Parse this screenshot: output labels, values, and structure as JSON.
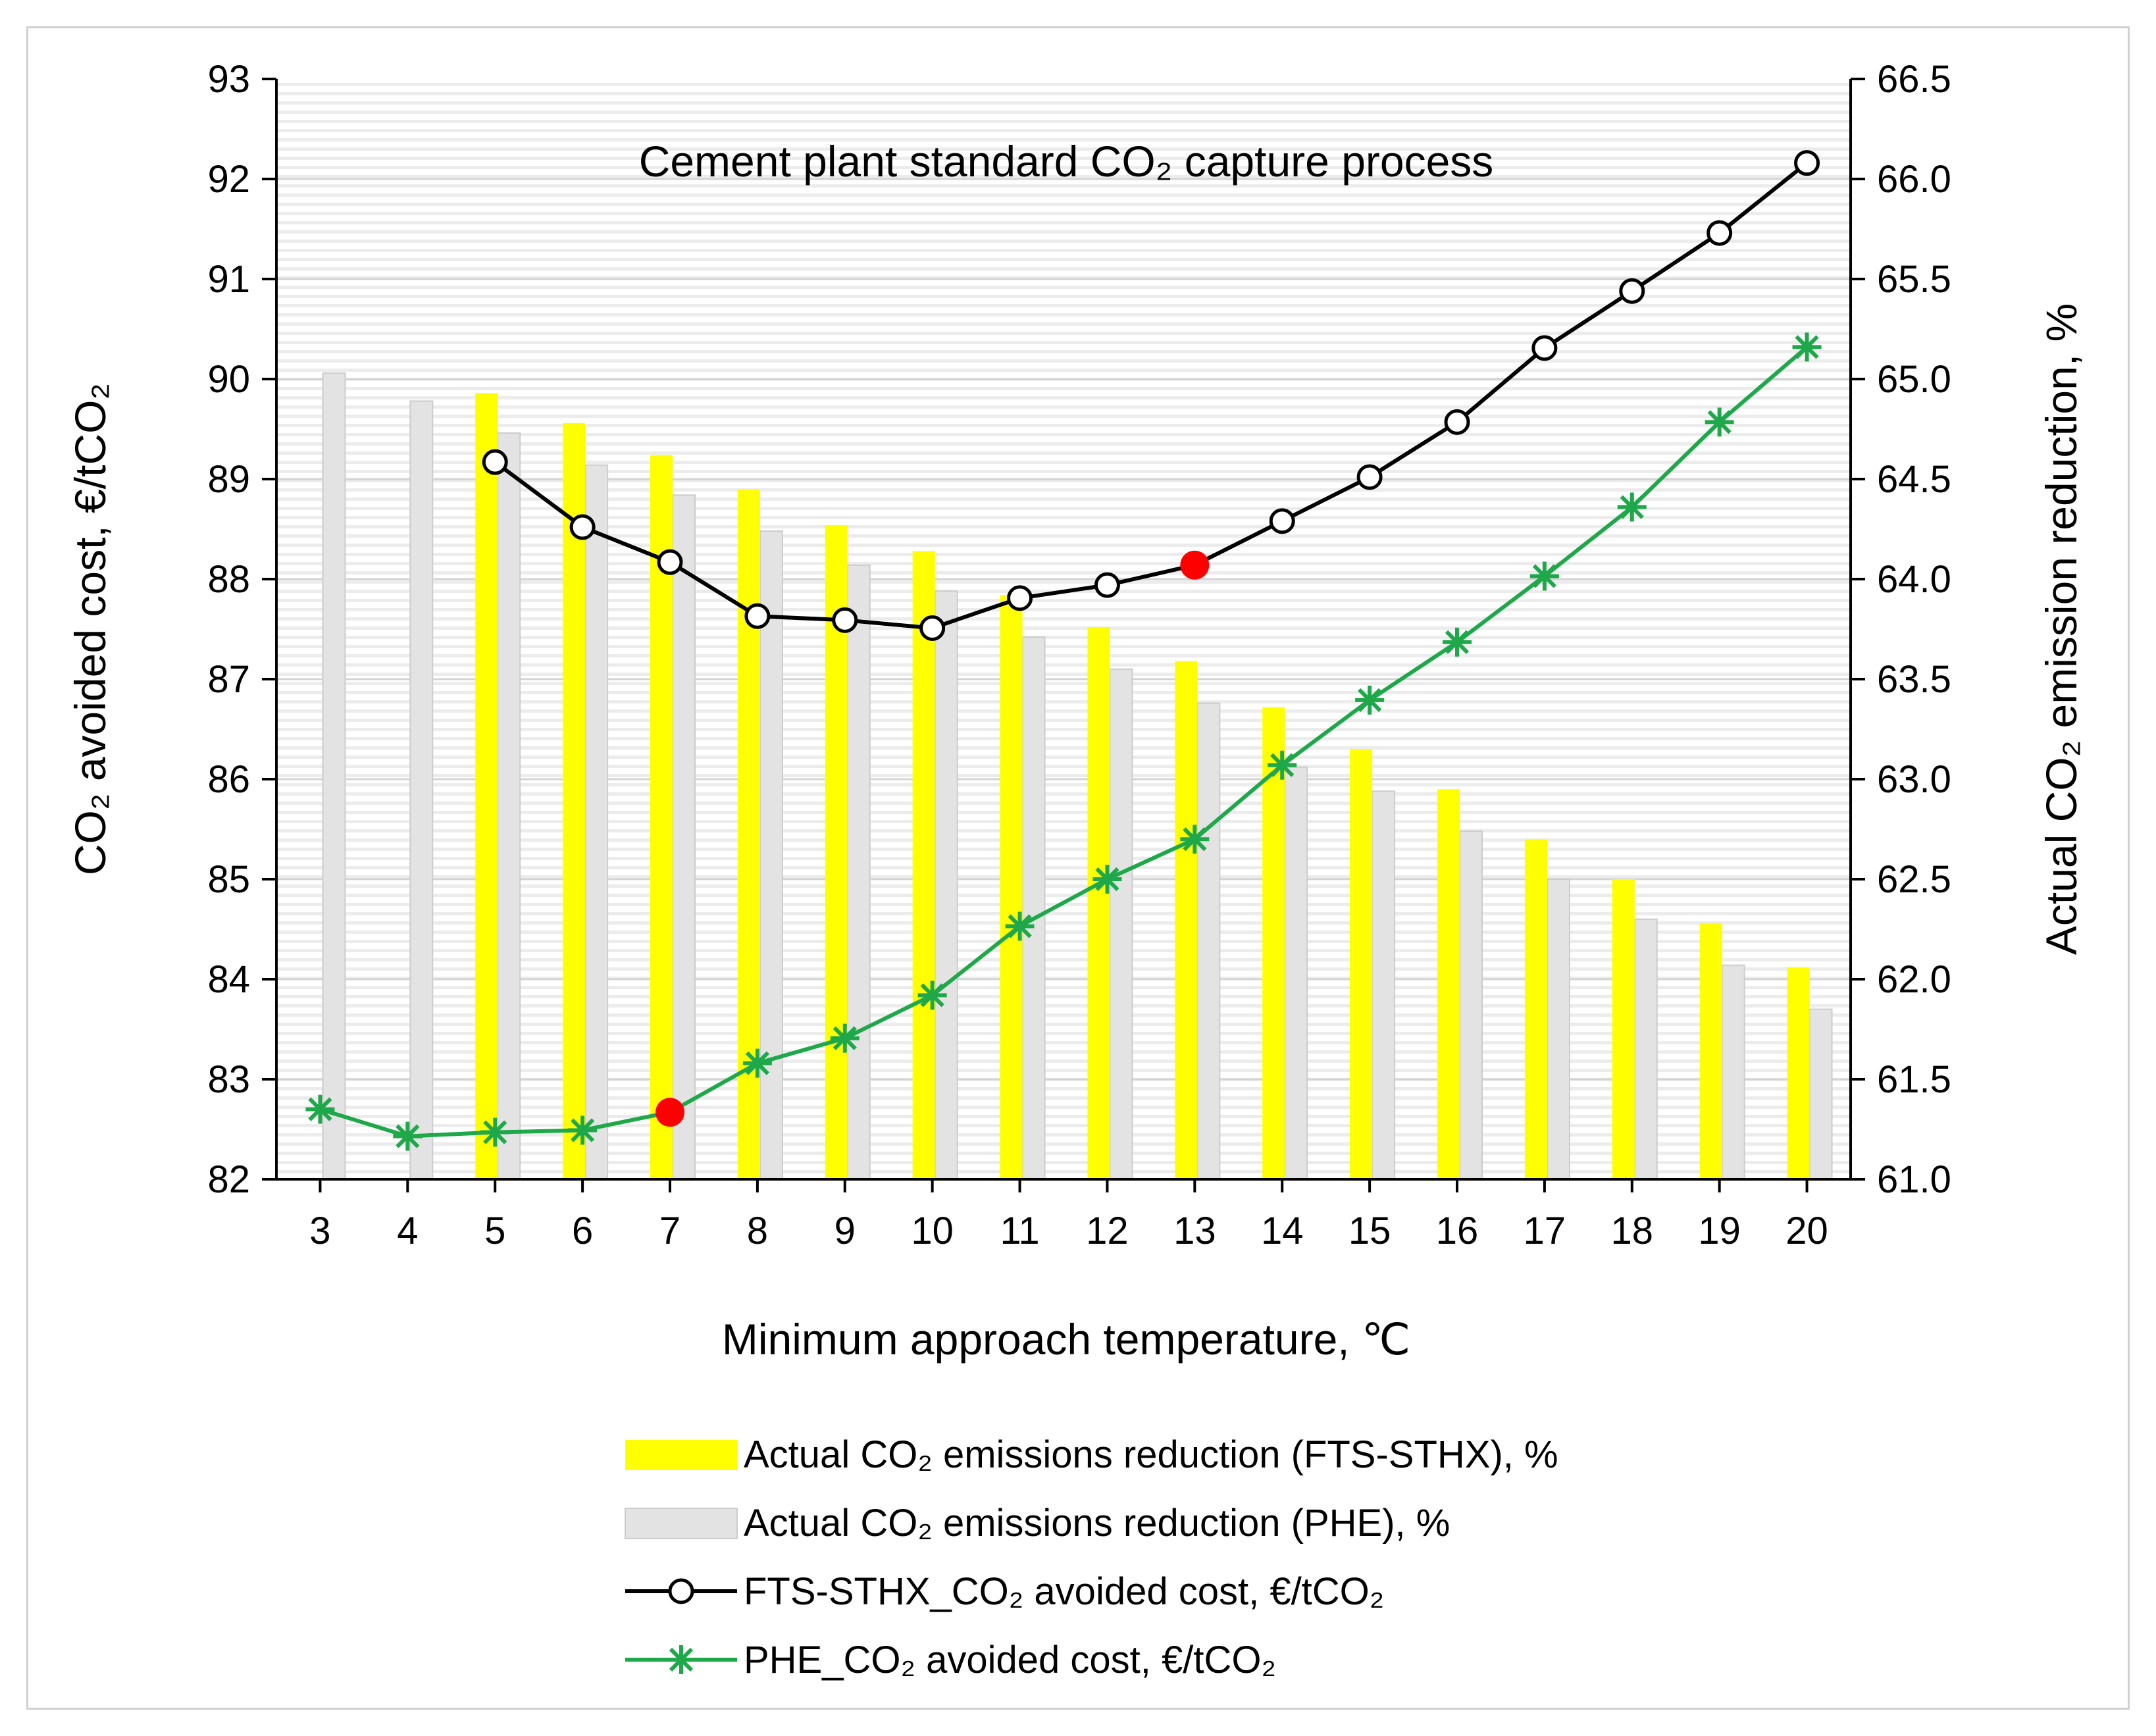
{
  "chart_data": {
    "type": "bar+line",
    "title": "Cement plant standard CO₂ capture process",
    "xlabel": "Minimum approach temperature, ℃",
    "ylabel_left": "CO₂ avoided cost, €/tCO₂",
    "ylabel_right": "Actual CO₂ emission reduction, %",
    "categories": [
      3,
      4,
      5,
      6,
      7,
      8,
      9,
      10,
      11,
      12,
      13,
      14,
      15,
      16,
      17,
      18,
      19,
      20
    ],
    "ylim_left": [
      82,
      93
    ],
    "ylim_right": [
      61.0,
      66.5
    ],
    "yticks_left": [
      "82",
      "83",
      "84",
      "85",
      "86",
      "87",
      "88",
      "89",
      "90",
      "91",
      "92",
      "93"
    ],
    "yticks_right": [
      "61.0",
      "61.5",
      "62.0",
      "62.5",
      "63.0",
      "63.5",
      "64.0",
      "64.5",
      "65.0",
      "65.5",
      "66.0",
      "66.5"
    ],
    "series": [
      {
        "name": "Actual CO₂ emissions reduction (FTS-STHX), %",
        "type": "bar",
        "axis": "right",
        "color": "#ffff00",
        "values": [
          null,
          null,
          64.93,
          64.78,
          64.62,
          64.45,
          64.27,
          64.14,
          63.92,
          63.76,
          63.59,
          63.36,
          63.15,
          62.95,
          62.7,
          62.5,
          62.28,
          62.06
        ]
      },
      {
        "name": "Actual CO₂ emissions reduction (PHE), %",
        "type": "bar",
        "axis": "right",
        "color": "#e3e3e3",
        "values": [
          65.03,
          64.89,
          64.73,
          64.57,
          64.42,
          64.24,
          64.07,
          63.94,
          63.71,
          63.55,
          63.38,
          63.06,
          62.94,
          62.74,
          62.5,
          62.3,
          62.07,
          61.85
        ]
      },
      {
        "name": "FTS-STHX_CO₂ avoided cost, €/tCO₂",
        "type": "line",
        "axis": "left",
        "color": "#000000",
        "marker": "open-circle",
        "values": [
          null,
          null,
          89.17,
          88.52,
          88.17,
          87.63,
          87.59,
          87.51,
          87.81,
          87.94,
          88.14,
          88.58,
          89.02,
          89.57,
          90.31,
          90.88,
          91.46,
          92.16
        ],
        "highlight_index": 10
      },
      {
        "name": "PHE_CO₂ avoided cost, €/tCO₂",
        "type": "line",
        "axis": "left",
        "color": "#1ea84a",
        "marker": "asterisk",
        "values": [
          82.7,
          82.43,
          82.47,
          82.49,
          82.67,
          83.16,
          83.41,
          83.84,
          84.53,
          85.0,
          85.4,
          86.14,
          86.79,
          87.37,
          88.03,
          88.72,
          89.57,
          90.32
        ],
        "highlight_index": 4
      }
    ],
    "highlight_color": "#ff0000",
    "legend_position": "bottom"
  }
}
